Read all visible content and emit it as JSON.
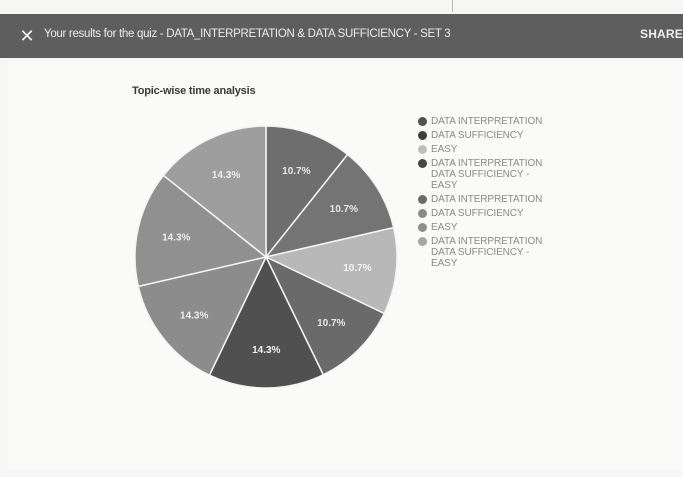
{
  "header": {
    "close_icon": "close-icon",
    "close_glyph": "✕",
    "title": "Your results for the quiz - DATA_INTERPRETATION & DATA SUFFICIENCY - SET 3",
    "share_label": "SHARE"
  },
  "chart_data": {
    "type": "pie",
    "title": "Topic-wise time analysis",
    "slices": [
      {
        "label": "DATA INTERPRETATION",
        "value": 10.7,
        "display": "10.7%",
        "color": "#6e6e6e",
        "text_color": "#e8e8e8"
      },
      {
        "label": "DATA SUFFICIENCY",
        "value": 10.7,
        "display": "10.7%",
        "color": "#747474",
        "text_color": "#e8e8e8"
      },
      {
        "label": "EASY",
        "value": 10.7,
        "display": "10.7%",
        "color": "#b8b8b8",
        "text_color": "#f4f4f4"
      },
      {
        "label": "DATA INTERPRETATION\nDATA SUFFICIENCY -\nEASY",
        "value": 10.7,
        "display": "10.7%",
        "color": "#6a6a6a",
        "text_color": "#e8e8e8"
      },
      {
        "label": "DATA INTERPRETATION",
        "value": 14.3,
        "display": "14.3%",
        "color": "#505050",
        "text_color": "#f2f2f2"
      },
      {
        "label": "DATA SUFFICIENCY",
        "value": 14.3,
        "display": "14.3%",
        "color": "#8c8c8c",
        "text_color": "#eeeeee"
      },
      {
        "label": "EASY",
        "value": 14.3,
        "display": "14.3%",
        "color": "#909090",
        "text_color": "#eeeeee"
      },
      {
        "label": "DATA INTERPRETATION\nDATA SUFFICIENCY -\nEASY",
        "value": 14.3,
        "display": "14.3%",
        "color": "#9e9e9e",
        "text_color": "#eeeeee"
      }
    ]
  },
  "legend": {
    "items": [
      {
        "label": "DATA INTERPRETATION",
        "color": "#505050"
      },
      {
        "label": "DATA SUFFICIENCY",
        "color": "#3e3e3e"
      },
      {
        "label": "EASY",
        "color": "#bdbdbd"
      },
      {
        "label": "DATA INTERPRETATION\nDATA SUFFICIENCY -\nEASY",
        "color": "#454545"
      },
      {
        "label": "DATA INTERPRETATION",
        "color": "#6a6a6a"
      },
      {
        "label": "DATA SUFFICIENCY",
        "color": "#8a8a8a"
      },
      {
        "label": "EASY",
        "color": "#8e8e8e"
      },
      {
        "label": "DATA INTERPRETATION\nDATA SUFFICIENCY -\nEASY",
        "color": "#a6a6a6"
      }
    ]
  }
}
